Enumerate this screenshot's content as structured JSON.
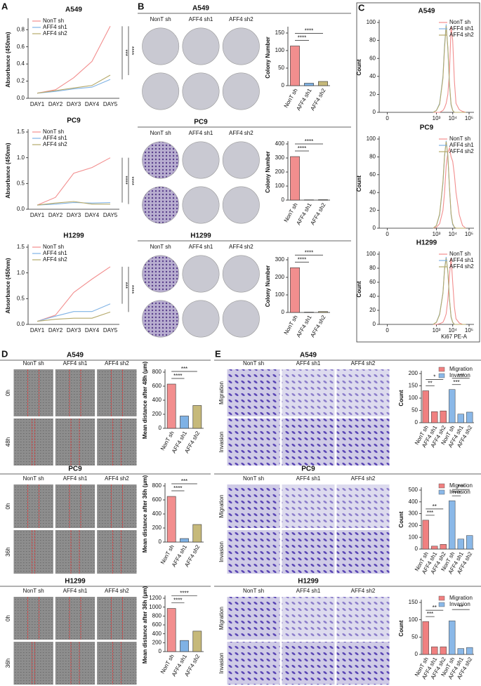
{
  "panel_labels": [
    "A",
    "B",
    "C",
    "D",
    "E"
  ],
  "image_grids": [
    {
      "title": "A549",
      "columns": [
        "NonT sh",
        "AFF4 sh1",
        "AFF4 sh2"
      ]
    },
    {
      "title": "PC9",
      "columns": [
        "NonT sh",
        "AFF4 sh1",
        "AFF4 sh2"
      ]
    },
    {
      "title": "H1299",
      "columns": [
        "NonT sh",
        "AFF4 sh1",
        "AFF4 sh2"
      ]
    },
    {
      "title": "A549",
      "columns": [
        "NonT sh",
        "AFF4 sh1",
        "AFF4 sh2"
      ],
      "row_labels": [
        "0h",
        "48h"
      ]
    },
    {
      "title": "PC9",
      "columns": [
        "NonT sh",
        "AFF4 sh1",
        "AFF4 sh2"
      ],
      "row_labels": [
        "0h",
        "36h"
      ]
    },
    {
      "title": "H1299",
      "columns": [
        "NonT sh",
        "AFF4 sh1",
        "AFF4 sh2"
      ],
      "row_labels": [
        "0h",
        "36h"
      ]
    },
    {
      "title": "A549",
      "columns": [
        "NonT sh",
        "AFF4 sh1",
        "AFF4 sh2"
      ],
      "row_labels": [
        "Migration",
        "Invasion"
      ]
    },
    {
      "title": "PC9",
      "columns": [
        "NonT sh",
        "AFF4 sh1",
        "AFF4 sh2"
      ],
      "row_labels": [
        "Migration",
        "Invasion"
      ]
    },
    {
      "title": "H1299",
      "columns": [
        "NonT sh",
        "AFF4 sh1",
        "AFF4 sh2"
      ],
      "row_labels": [
        "Migration",
        "Invasion"
      ]
    }
  ],
  "chart_data": [
    {
      "type": "line",
      "title": "A549",
      "ylabel": "Absorbance (450nm)",
      "categories": [
        "DAY1",
        "DAY2",
        "DAY3",
        "DAY4",
        "DAY5"
      ],
      "series": [
        {
          "name": "NonT sh",
          "color": "#f28e8e",
          "values": [
            0.06,
            0.1,
            0.24,
            0.43,
            0.84
          ]
        },
        {
          "name": "AFF4 sh1",
          "color": "#7fb2e5",
          "values": [
            0.06,
            0.08,
            0.11,
            0.13,
            0.22
          ]
        },
        {
          "name": "AFF4 sh2",
          "color": "#b5a96a",
          "values": [
            0.06,
            0.09,
            0.12,
            0.15,
            0.27
          ]
        }
      ],
      "ylim": [
        0,
        0.9
      ],
      "yticks": [
        {
          "value": 0,
          "label": "0.0"
        },
        0.2,
        0.4,
        0.6,
        0.8
      ],
      "legend": "upper left",
      "annotations": [
        "***",
        "****"
      ]
    },
    {
      "type": "line",
      "title": "PC9",
      "ylabel": "Absorbance (450nm)",
      "categories": [
        "DAY1",
        "DAY2",
        "DAY3",
        "DAY4",
        "DAY5"
      ],
      "series": [
        {
          "name": "NonT sh",
          "color": "#f28e8e",
          "values": [
            0.08,
            0.23,
            0.7,
            0.81,
            1.0
          ]
        },
        {
          "name": "AFF4 sh1",
          "color": "#7fb2e5",
          "values": [
            0.08,
            0.1,
            0.13,
            0.12,
            0.13
          ]
        },
        {
          "name": "AFF4 sh2",
          "color": "#b5a96a",
          "values": [
            0.08,
            0.12,
            0.15,
            0.1,
            0.1
          ]
        }
      ],
      "ylim": [
        0,
        1.5
      ],
      "yticks": [
        {
          "value": 0,
          "label": "0.0"
        },
        0.5,
        {
          "value": 1,
          "label": "1.0"
        },
        1.5
      ],
      "legend": "upper left",
      "annotations": [
        "****",
        "****"
      ]
    },
    {
      "type": "line",
      "title": "H1299",
      "ylabel": "Absorbance (450nm)",
      "categories": [
        "DAY1",
        "DAY2",
        "DAY3",
        "DAY4",
        "DAY5"
      ],
      "series": [
        {
          "name": "NonT sh",
          "color": "#f28e8e",
          "values": [
            0.06,
            0.18,
            0.62,
            0.88,
            1.12
          ]
        },
        {
          "name": "AFF4 sh1",
          "color": "#7fb2e5",
          "values": [
            0.06,
            0.16,
            0.25,
            0.25,
            0.4
          ]
        },
        {
          "name": "AFF4 sh2",
          "color": "#b5a96a",
          "values": [
            0.06,
            0.1,
            0.12,
            0.12,
            0.24
          ]
        }
      ],
      "ylim": [
        0,
        1.5
      ],
      "yticks": [
        {
          "value": 0,
          "label": "0.0"
        },
        0.5,
        {
          "value": 1,
          "label": "1.0"
        },
        1.5
      ],
      "legend": "upper left",
      "annotations": [
        "***",
        "****"
      ]
    },
    {
      "type": "bar",
      "ylabel": "Colony Number",
      "categories": [
        "NonT sh",
        "AFF4 sh1",
        "AFF4 sh2"
      ],
      "values": [
        113,
        7,
        12
      ],
      "colors": [
        "#f28e8e",
        "#7fb2e5",
        "#c6b97a"
      ],
      "ylim": [
        0,
        160
      ],
      "yticks": [
        0,
        50,
        100,
        150
      ],
      "annotations": [
        "****",
        "****"
      ]
    },
    {
      "type": "bar",
      "ylabel": "Colony Number",
      "categories": [
        "NonT sh",
        "AFF4 sh1",
        "AFF4 sh2"
      ],
      "values": [
        310,
        2,
        3
      ],
      "colors": [
        "#f28e8e",
        "#7fb2e5",
        "#c6b97a"
      ],
      "ylim": [
        0,
        400
      ],
      "yticks": [
        0,
        100,
        200,
        300,
        400
      ],
      "annotations": [
        "****",
        "****"
      ]
    },
    {
      "type": "bar",
      "ylabel": "Colony Number",
      "categories": [
        "NonT sh",
        "AFF4 sh1",
        "AFF4 sh2"
      ],
      "values": [
        255,
        2,
        5
      ],
      "colors": [
        "#f28e8e",
        "#7fb2e5",
        "#c6b97a"
      ],
      "ylim": [
        0,
        300
      ],
      "yticks": [
        0,
        100,
        200,
        300
      ],
      "annotations": [
        "****",
        "****"
      ]
    },
    {
      "type": "line",
      "title": "A549",
      "ylabel": "Count",
      "x": [
        2.8,
        3.0,
        3.2,
        3.4,
        3.5,
        3.6,
        3.7,
        3.8,
        3.9,
        4.0,
        4.1,
        4.2,
        4.4,
        4.6,
        4.8
      ],
      "series": [
        {
          "name": "NonT sh",
          "color": "#f28e8e",
          "values": [
            0,
            0,
            0,
            2,
            5,
            10,
            20,
            45,
            95,
            80,
            35,
            10,
            3,
            1,
            0
          ]
        },
        {
          "name": "AFF4 sh1",
          "color": "#7fb2e5",
          "values": [
            0,
            2,
            10,
            40,
            75,
            98,
            70,
            30,
            8,
            2,
            0,
            0,
            0,
            0,
            0
          ]
        },
        {
          "name": "AFF4 sh2",
          "color": "#b5a96a",
          "values": [
            0,
            2,
            9,
            38,
            72,
            96,
            72,
            32,
            9,
            2,
            0,
            0,
            0,
            0,
            0
          ]
        }
      ],
      "xlim": [
        -0.5,
        5.3
      ],
      "xticks": [
        0,
        {
          "value": 3,
          "label": "10³"
        },
        {
          "value": 4,
          "label": "10⁴"
        },
        {
          "value": 5,
          "label": "10⁵"
        }
      ],
      "ylim": [
        0,
        100
      ],
      "yticks": [
        0,
        20,
        40,
        60,
        80,
        100
      ],
      "legend": "upper right"
    },
    {
      "type": "line",
      "title": "PC9",
      "ylabel": "Count",
      "x": [
        2.8,
        3.0,
        3.2,
        3.4,
        3.5,
        3.6,
        3.7,
        3.8,
        3.9,
        4.0,
        4.1,
        4.2,
        4.4,
        4.6,
        4.8
      ],
      "series": [
        {
          "name": "NonT sh",
          "color": "#f28e8e",
          "values": [
            0,
            1,
            5,
            20,
            40,
            70,
            85,
            90,
            80,
            75,
            60,
            40,
            15,
            3,
            0
          ]
        },
        {
          "name": "AFF4 sh1",
          "color": "#7fb2e5",
          "values": [
            0,
            3,
            15,
            50,
            80,
            98,
            80,
            45,
            15,
            4,
            1,
            0,
            0,
            0,
            0
          ]
        },
        {
          "name": "AFF4 sh2",
          "color": "#b5a96a",
          "values": [
            0,
            3,
            16,
            52,
            82,
            97,
            82,
            46,
            16,
            5,
            1,
            0,
            0,
            0,
            0
          ]
        }
      ],
      "xlim": [
        -0.5,
        5.3
      ],
      "xticks": [
        0,
        {
          "value": 3,
          "label": "10³"
        },
        {
          "value": 4,
          "label": "10⁴"
        },
        {
          "value": 5,
          "label": "10⁵"
        }
      ],
      "ylim": [
        0,
        100
      ],
      "yticks": [
        0,
        20,
        40,
        60,
        80,
        100
      ],
      "legend": "upper right"
    },
    {
      "type": "line",
      "title": "H1299",
      "ylabel": "Count",
      "xlabel": "Ki67 PE-A",
      "x": [
        2.8,
        3.0,
        3.2,
        3.4,
        3.5,
        3.6,
        3.7,
        3.8,
        3.9,
        4.0,
        4.1,
        4.2,
        4.4,
        4.6,
        4.8
      ],
      "series": [
        {
          "name": "NonT sh",
          "color": "#f28e8e",
          "values": [
            0,
            0,
            1,
            3,
            8,
            15,
            35,
            70,
            95,
            60,
            25,
            8,
            2,
            0,
            0
          ]
        },
        {
          "name": "AFF4 sh1",
          "color": "#7fb2e5",
          "values": [
            0,
            3,
            15,
            45,
            80,
            96,
            75,
            35,
            10,
            3,
            0,
            0,
            0,
            0,
            0
          ]
        },
        {
          "name": "AFF4 sh2",
          "color": "#b5a96a",
          "values": [
            0,
            3,
            14,
            44,
            78,
            94,
            76,
            36,
            11,
            3,
            0,
            0,
            0,
            0,
            0
          ]
        }
      ],
      "xlim": [
        -0.5,
        5.3
      ],
      "xticks": [
        0,
        {
          "value": 3,
          "label": "10³"
        },
        {
          "value": 4,
          "label": "10⁴"
        },
        {
          "value": 5,
          "label": "10⁵"
        }
      ],
      "ylim": [
        0,
        100
      ],
      "yticks": [
        0,
        20,
        40,
        60,
        80,
        100
      ],
      "legend": "upper right"
    },
    {
      "type": "bar",
      "ylabel": "Mean distance after 48h (μm)",
      "categories": [
        "NonT sh",
        "AFF4 sh1",
        "AFF4 sh2"
      ],
      "values": [
        630,
        175,
        325
      ],
      "colors": [
        "#f28e8e",
        "#7fb2e5",
        "#c6b97a"
      ],
      "ylim": [
        0,
        800
      ],
      "yticks": [
        0,
        200,
        400,
        600,
        800
      ],
      "annotations": [
        "***",
        "****"
      ]
    },
    {
      "type": "bar",
      "ylabel": "Mean distance after 36h (μm)",
      "categories": [
        "NonT sh",
        "AFF4 sh1",
        "AFF4 sh2"
      ],
      "values": [
        650,
        50,
        250
      ],
      "colors": [
        "#f28e8e",
        "#7fb2e5",
        "#c6b97a"
      ],
      "ylim": [
        0,
        800
      ],
      "yticks": [
        0,
        200,
        400,
        600,
        800
      ],
      "annotations": [
        "***",
        "****"
      ]
    },
    {
      "type": "bar",
      "ylabel": "Mean distance after 36h (μm)",
      "categories": [
        "NonT sh",
        "AFF4 sh1",
        "AFF4 sh2"
      ],
      "values": [
        970,
        250,
        460
      ],
      "colors": [
        "#f28e8e",
        "#7fb2e5",
        "#c6b97a"
      ],
      "ylim": [
        0,
        1200
      ],
      "yticks": [
        0,
        200,
        400,
        600,
        800,
        1000,
        1200
      ],
      "annotations": [
        "****",
        "****"
      ]
    },
    {
      "type": "grouped_bar",
      "ylabel": "Count",
      "categories": [
        "NonT sh",
        "AFF4 sh1",
        "AFF4 sh2",
        "NonT sh",
        "AFF4 sh1",
        "AFF4 sh2"
      ],
      "series": [
        {
          "name": "Migration",
          "color": "#f08080",
          "values": [
            130,
            45,
            48,
            null,
            null,
            null
          ]
        },
        {
          "name": "Invasion",
          "color": "#8ab8e8",
          "values": [
            null,
            null,
            null,
            135,
            35,
            43
          ]
        }
      ],
      "ylim": [
        0,
        200
      ],
      "yticks": [
        0,
        50,
        100,
        150,
        200
      ],
      "legend": "upper right",
      "annotations": [
        "*",
        "**",
        "***",
        "***"
      ]
    },
    {
      "type": "grouped_bar",
      "ylabel": "Count",
      "categories": [
        "NonT sh",
        "AFF4 sh1",
        "AFF4 sh2",
        "NonT sh",
        "AFF4 sh1",
        "AFF4 sh2"
      ],
      "series": [
        {
          "name": "Migration",
          "color": "#f08080",
          "values": [
            245,
            25,
            40,
            null,
            null,
            null
          ]
        },
        {
          "name": "Invasion",
          "color": "#8ab8e8",
          "values": [
            null,
            null,
            null,
            410,
            85,
            115
          ]
        }
      ],
      "ylim": [
        0,
        500
      ],
      "yticks": [
        0,
        100,
        200,
        300,
        400,
        500
      ],
      "legend": "upper right",
      "annotations": [
        "**",
        "***",
        "***",
        "****"
      ]
    },
    {
      "type": "grouped_bar",
      "ylabel": "Count",
      "categories": [
        "NonT sh",
        "AFF4 sh1",
        "AFF4 sh2",
        "NonT sh",
        "AFF4 sh1",
        "AFF4 sh2"
      ],
      "series": [
        {
          "name": "Migration",
          "color": "#f08080",
          "values": [
            95,
            22,
            22,
            null,
            null,
            null
          ]
        },
        {
          "name": "Invasion",
          "color": "#8ab8e8",
          "values": [
            null,
            null,
            null,
            97,
            17,
            20
          ]
        }
      ],
      "ylim": [
        0,
        150
      ],
      "yticks": [
        0,
        50,
        100,
        150
      ],
      "legend": "upper right",
      "annotations": [
        "**",
        "***",
        "**"
      ]
    }
  ]
}
